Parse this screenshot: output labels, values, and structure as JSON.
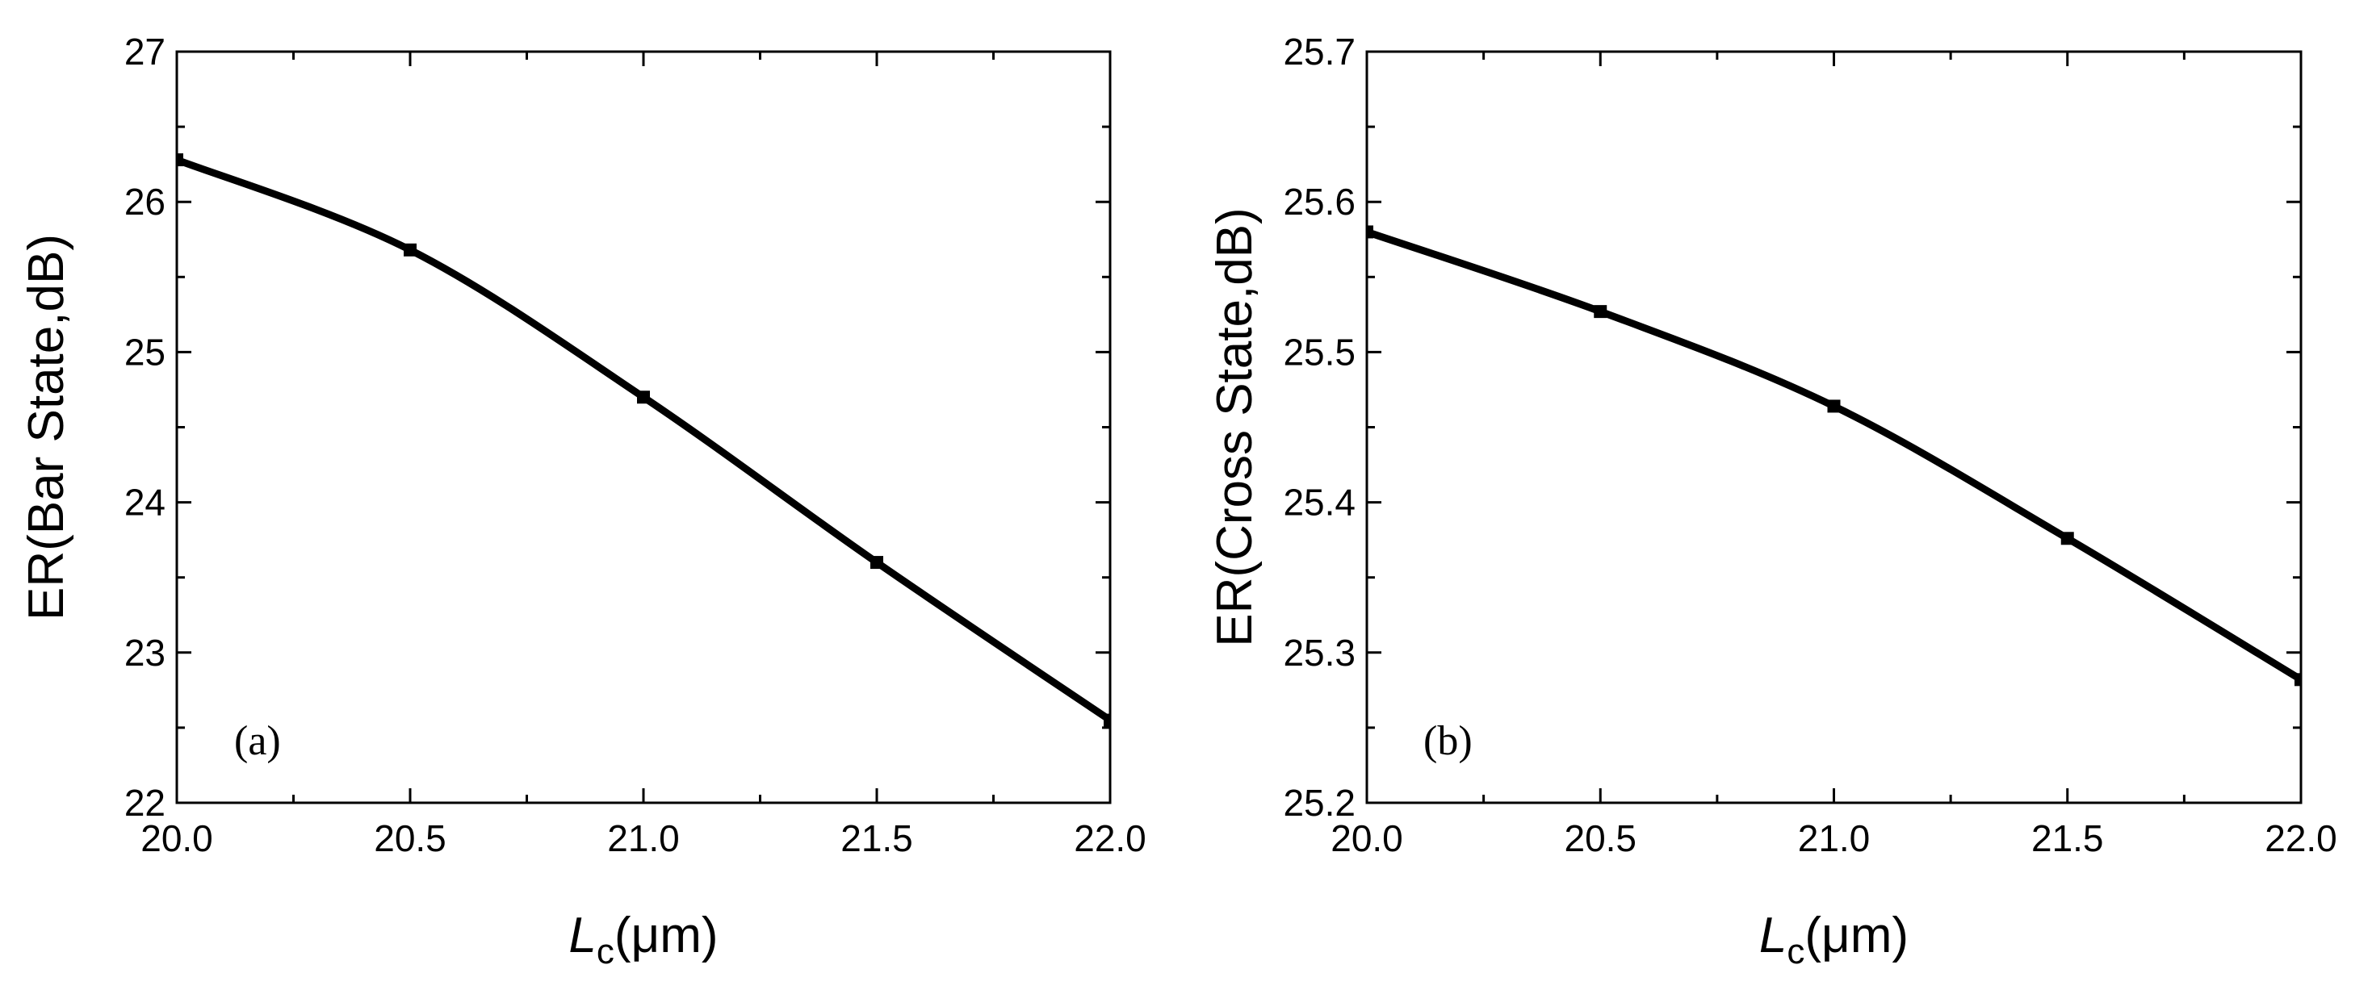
{
  "chart_data": [
    {
      "type": "line",
      "panel_label": "(a)",
      "xlabel_symbol": "L",
      "xlabel_subscript": "c",
      "xlabel_unit": "(μm)",
      "ylabel": "ER(Bar State,dB)",
      "xlim": [
        20.0,
        22.0
      ],
      "ylim": [
        22,
        27
      ],
      "xticks": [
        "20.0",
        "20.5",
        "21.0",
        "21.5",
        "22.0"
      ],
      "yticks": [
        "22",
        "23",
        "24",
        "25",
        "26",
        "27"
      ],
      "x": [
        20.0,
        20.5,
        21.0,
        21.5,
        22.0
      ],
      "values": [
        26.28,
        25.68,
        24.7,
        23.6,
        22.55
      ],
      "marker": "square",
      "line_color": "#000000",
      "grid": false
    },
    {
      "type": "line",
      "panel_label": "(b)",
      "xlabel_symbol": "L",
      "xlabel_subscript": "c",
      "xlabel_unit": "(μm)",
      "ylabel": "ER(Cross State,dB)",
      "xlim": [
        20.0,
        22.0
      ],
      "ylim": [
        25.2,
        25.7
      ],
      "xticks": [
        "20.0",
        "20.5",
        "21.0",
        "21.5",
        "22.0"
      ],
      "yticks": [
        "25.2",
        "25.3",
        "25.4",
        "25.5",
        "25.6",
        "25.7"
      ],
      "x": [
        20.0,
        20.5,
        21.0,
        21.5,
        22.0
      ],
      "values": [
        25.58,
        25.527,
        25.464,
        25.376,
        25.282
      ],
      "marker": "square",
      "line_color": "#000000",
      "grid": false
    }
  ]
}
